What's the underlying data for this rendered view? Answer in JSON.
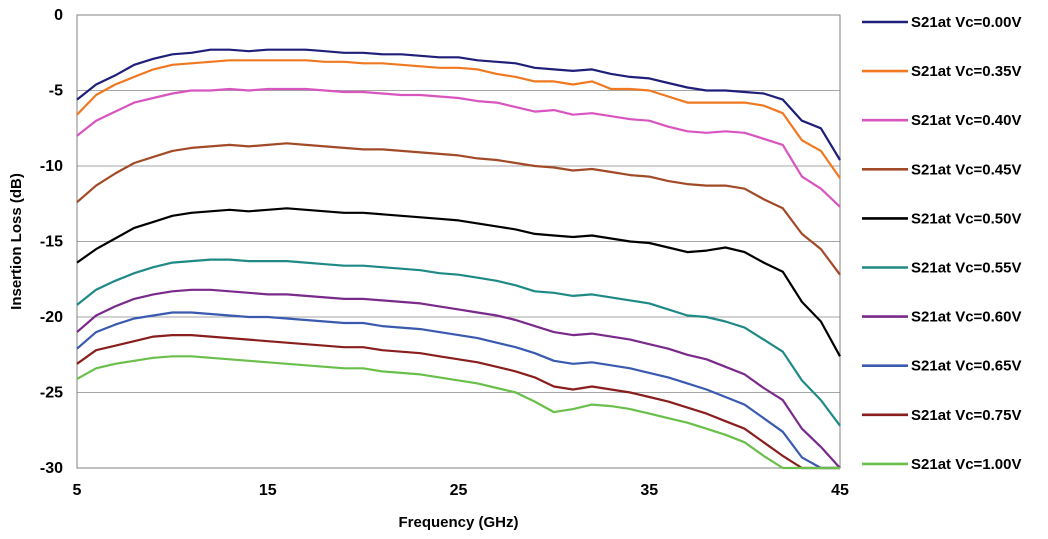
{
  "chart_data": {
    "type": "line",
    "title": "",
    "xlabel": "Frequency (GHz)",
    "ylabel": "Insertion Loss (dB)",
    "xlim": [
      5,
      45
    ],
    "ylim": [
      -30,
      0
    ],
    "xticks": [
      5,
      15,
      25,
      35,
      45
    ],
    "yticks": [
      0,
      -5,
      -10,
      -15,
      -20,
      -25,
      -30
    ],
    "grid": "horizontal",
    "legend_position": "right",
    "x": [
      5,
      6,
      7,
      8,
      9,
      10,
      11,
      12,
      13,
      14,
      15,
      16,
      17,
      18,
      19,
      20,
      21,
      22,
      23,
      24,
      25,
      26,
      27,
      28,
      29,
      30,
      31,
      32,
      33,
      34,
      35,
      36,
      37,
      38,
      39,
      40,
      41,
      42,
      43,
      44,
      45
    ],
    "series": [
      {
        "name": "S21at Vc=0.00V",
        "color": "#1f1f7a",
        "values": [
          -5.6,
          -4.6,
          -4.0,
          -3.3,
          -2.9,
          -2.6,
          -2.5,
          -2.3,
          -2.3,
          -2.4,
          -2.3,
          -2.3,
          -2.3,
          -2.4,
          -2.5,
          -2.5,
          -2.6,
          -2.6,
          -2.7,
          -2.8,
          -2.8,
          -3.0,
          -3.1,
          -3.2,
          -3.5,
          -3.6,
          -3.7,
          -3.6,
          -3.9,
          -4.1,
          -4.2,
          -4.5,
          -4.8,
          -5.0,
          -5.0,
          -5.1,
          -5.2,
          -5.6,
          -7.0,
          -7.5,
          -9.6
        ]
      },
      {
        "name": "S21at Vc=0.35V",
        "color": "#f07820",
        "values": [
          -6.6,
          -5.3,
          -4.6,
          -4.1,
          -3.6,
          -3.3,
          -3.2,
          -3.1,
          -3.0,
          -3.0,
          -3.0,
          -3.0,
          -3.0,
          -3.1,
          -3.1,
          -3.2,
          -3.2,
          -3.3,
          -3.4,
          -3.5,
          -3.5,
          -3.6,
          -3.9,
          -4.1,
          -4.4,
          -4.4,
          -4.6,
          -4.4,
          -4.9,
          -4.9,
          -5.0,
          -5.4,
          -5.8,
          -5.8,
          -5.8,
          -5.8,
          -6.0,
          -6.5,
          -8.3,
          -9.0,
          -10.8
        ]
      },
      {
        "name": "S21at Vc=0.40V",
        "color": "#d855c0",
        "values": [
          -8.0,
          -7.0,
          -6.4,
          -5.8,
          -5.5,
          -5.2,
          -5.0,
          -5.0,
          -4.9,
          -5.0,
          -4.9,
          -4.9,
          -4.9,
          -5.0,
          -5.1,
          -5.1,
          -5.2,
          -5.3,
          -5.3,
          -5.4,
          -5.5,
          -5.7,
          -5.8,
          -6.1,
          -6.4,
          -6.3,
          -6.6,
          -6.5,
          -6.7,
          -6.9,
          -7.0,
          -7.4,
          -7.7,
          -7.8,
          -7.7,
          -7.8,
          -8.2,
          -8.6,
          -10.7,
          -11.5,
          -12.7
        ]
      },
      {
        "name": "S21at Vc=0.45V",
        "color": "#a24a28",
        "values": [
          -12.4,
          -11.3,
          -10.5,
          -9.8,
          -9.4,
          -9.0,
          -8.8,
          -8.7,
          -8.6,
          -8.7,
          -8.6,
          -8.5,
          -8.6,
          -8.7,
          -8.8,
          -8.9,
          -8.9,
          -9.0,
          -9.1,
          -9.2,
          -9.3,
          -9.5,
          -9.6,
          -9.8,
          -10.0,
          -10.1,
          -10.3,
          -10.2,
          -10.4,
          -10.6,
          -10.7,
          -11.0,
          -11.2,
          -11.3,
          -11.3,
          -11.5,
          -12.2,
          -12.8,
          -14.5,
          -15.5,
          -17.2
        ]
      },
      {
        "name": "S21at Vc=0.50V",
        "color": "#000000",
        "values": [
          -16.4,
          -15.5,
          -14.8,
          -14.1,
          -13.7,
          -13.3,
          -13.1,
          -13.0,
          -12.9,
          -13.0,
          -12.9,
          -12.8,
          -12.9,
          -13.0,
          -13.1,
          -13.1,
          -13.2,
          -13.3,
          -13.4,
          -13.5,
          -13.6,
          -13.8,
          -14.0,
          -14.2,
          -14.5,
          -14.6,
          -14.7,
          -14.6,
          -14.8,
          -15.0,
          -15.1,
          -15.4,
          -15.7,
          -15.6,
          -15.4,
          -15.7,
          -16.4,
          -17.0,
          -19.0,
          -20.3,
          -22.6
        ]
      },
      {
        "name": "S21at Vc=0.55V",
        "color": "#1f8a85",
        "values": [
          -19.2,
          -18.2,
          -17.6,
          -17.1,
          -16.7,
          -16.4,
          -16.3,
          -16.2,
          -16.2,
          -16.3,
          -16.3,
          -16.3,
          -16.4,
          -16.5,
          -16.6,
          -16.6,
          -16.7,
          -16.8,
          -16.9,
          -17.1,
          -17.2,
          -17.4,
          -17.6,
          -17.9,
          -18.3,
          -18.4,
          -18.6,
          -18.5,
          -18.7,
          -18.9,
          -19.1,
          -19.5,
          -19.9,
          -20.0,
          -20.3,
          -20.7,
          -21.5,
          -22.3,
          -24.2,
          -25.5,
          -27.2
        ]
      },
      {
        "name": "S21at Vc=0.60V",
        "color": "#7a2a8a",
        "values": [
          -21.0,
          -19.9,
          -19.3,
          -18.8,
          -18.5,
          -18.3,
          -18.2,
          -18.2,
          -18.3,
          -18.4,
          -18.5,
          -18.5,
          -18.6,
          -18.7,
          -18.8,
          -18.8,
          -18.9,
          -19.0,
          -19.1,
          -19.3,
          -19.5,
          -19.7,
          -19.9,
          -20.2,
          -20.6,
          -21.0,
          -21.2,
          -21.1,
          -21.3,
          -21.5,
          -21.8,
          -22.1,
          -22.5,
          -22.8,
          -23.3,
          -23.8,
          -24.7,
          -25.5,
          -27.4,
          -28.6,
          -30.0
        ]
      },
      {
        "name": "S21at Vc=0.65V",
        "color": "#3a5ab0",
        "values": [
          -22.1,
          -21.0,
          -20.5,
          -20.1,
          -19.9,
          -19.7,
          -19.7,
          -19.8,
          -19.9,
          -20.0,
          -20.0,
          -20.1,
          -20.2,
          -20.3,
          -20.4,
          -20.4,
          -20.6,
          -20.7,
          -20.8,
          -21.0,
          -21.2,
          -21.4,
          -21.7,
          -22.0,
          -22.4,
          -22.9,
          -23.1,
          -23.0,
          -23.2,
          -23.4,
          -23.7,
          -24.0,
          -24.4,
          -24.8,
          -25.3,
          -25.8,
          -26.7,
          -27.6,
          -29.3,
          -30.0,
          -30.0
        ]
      },
      {
        "name": "S21at Vc=0.75V",
        "color": "#8a1e1e",
        "values": [
          -23.1,
          -22.2,
          -21.9,
          -21.6,
          -21.3,
          -21.2,
          -21.2,
          -21.3,
          -21.4,
          -21.5,
          -21.6,
          -21.7,
          -21.8,
          -21.9,
          -22.0,
          -22.0,
          -22.2,
          -22.3,
          -22.4,
          -22.6,
          -22.8,
          -23.0,
          -23.3,
          -23.6,
          -24.0,
          -24.6,
          -24.8,
          -24.6,
          -24.8,
          -25.0,
          -25.3,
          -25.6,
          -26.0,
          -26.4,
          -26.9,
          -27.4,
          -28.3,
          -29.2,
          -30.0,
          -30.0,
          -30.0
        ]
      },
      {
        "name": "S21at Vc=1.00V",
        "color": "#6abf4b",
        "values": [
          -24.1,
          -23.4,
          -23.1,
          -22.9,
          -22.7,
          -22.6,
          -22.6,
          -22.7,
          -22.8,
          -22.9,
          -23.0,
          -23.1,
          -23.2,
          -23.3,
          -23.4,
          -23.4,
          -23.6,
          -23.7,
          -23.8,
          -24.0,
          -24.2,
          -24.4,
          -24.7,
          -25.0,
          -25.6,
          -26.3,
          -26.1,
          -25.8,
          -25.9,
          -26.1,
          -26.4,
          -26.7,
          -27.0,
          -27.4,
          -27.8,
          -28.3,
          -29.2,
          -30.0,
          -30.0,
          -30.0,
          -30.0
        ]
      }
    ]
  }
}
